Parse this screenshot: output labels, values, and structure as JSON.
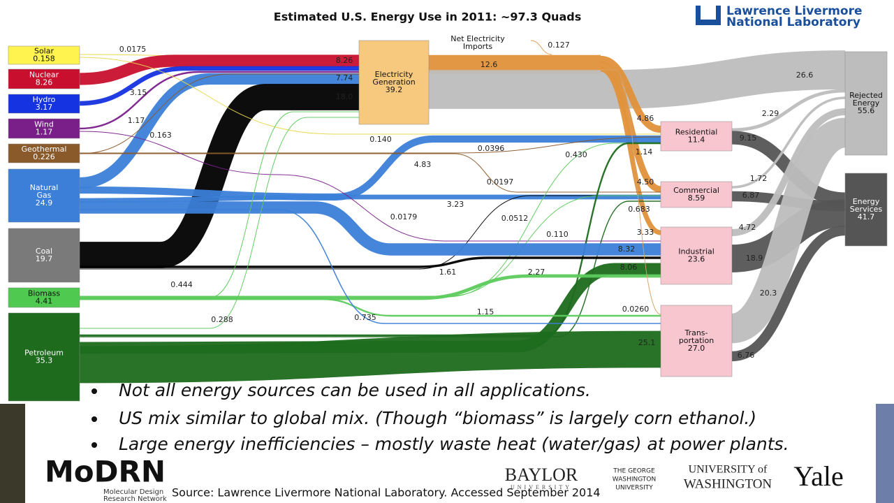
{
  "title": "Estimated U.S. Energy Use in 2011: ~97.3 Quads",
  "logo": {
    "lines": [
      "Lawrence Livermore",
      "National Laboratory"
    ]
  },
  "annotation": [
    "Net Electricity",
    "Imports"
  ],
  "nodes": [
    {
      "name": [
        "Solar"
      ],
      "value": "0.158"
    },
    {
      "name": [
        "Nuclear"
      ],
      "value": "8.26"
    },
    {
      "name": [
        "Hydro"
      ],
      "value": "3.17"
    },
    {
      "name": [
        "Wind"
      ],
      "value": "1.17"
    },
    {
      "name": [
        "Geothermal"
      ],
      "value": "0.226"
    },
    {
      "name": [
        "Natural",
        "Gas"
      ],
      "value": "24.9"
    },
    {
      "name": [
        "Coal"
      ],
      "value": "19.7"
    },
    {
      "name": [
        "Biomass"
      ],
      "value": "4.41"
    },
    {
      "name": [
        "Petroleum"
      ],
      "value": "35.3"
    },
    {
      "name": [
        "Electricity",
        "Generation"
      ],
      "value": "39.2"
    },
    {
      "name": [
        "Residential"
      ],
      "value": "11.4"
    },
    {
      "name": [
        "Commercial"
      ],
      "value": "8.59"
    },
    {
      "name": [
        "Industrial"
      ],
      "value": "23.6"
    },
    {
      "name": [
        "Trans-",
        "portation"
      ],
      "value": "27.0"
    },
    {
      "name": [
        "Rejected",
        "Energy"
      ],
      "value": "55.6"
    },
    {
      "name": [
        "Energy",
        "Services"
      ],
      "value": "41.7"
    }
  ],
  "flows": [
    0.0175,
    8.26,
    3.15,
    1.17,
    7.74,
    {
      "value": 18.0,
      "label": "18.0"
    },
    0.163,
    {
      "value": 0.14,
      "label": "0.140"
    },
    12.6,
    0.127,
    26.6,
    4.86,
    {
      "value": 4.5,
      "label": "4.50"
    },
    3.33,
    4.83,
    0.0396,
    0.0197,
    3.23,
    0.0179,
    0.0512,
    {
      "value": 0.11,
      "label": "0.110"
    },
    {
      "value": 0.43,
      "label": "0.430"
    },
    1.14,
    0.683,
    8.32,
    1.61,
    8.06,
    2.27,
    1.15,
    0.735,
    {
      "value": 0.026,
      "label": "0.0260"
    },
    25.1,
    0.444,
    0.288,
    2.29,
    9.15,
    1.72,
    6.87,
    4.72,
    18.9,
    20.3,
    6.76
  ],
  "bullets": [
    "Not all energy sources can be used in all applications.",
    "US mix similar to global mix.  (Though “biomass” is largely corn ethanol.)",
    "Large energy inefficiencies – mostly waste heat (water/gas) at power plants."
  ],
  "footer": {
    "modrn": "MoDRN",
    "modrn_sub": [
      "Molecular Design",
      "Research Network"
    ],
    "source": "Source: Lawrence Livermore National Laboratory. Accessed September 2014",
    "baylor": "BAYLOR",
    "baylor_sub": "UNIVERSITY",
    "gwu": [
      "THE GEORGE",
      "WASHINGTON",
      "UNIVERSITY"
    ],
    "uw": [
      "UNIVERSITY of",
      "WASHINGTON"
    ],
    "yale": "Yale"
  }
}
